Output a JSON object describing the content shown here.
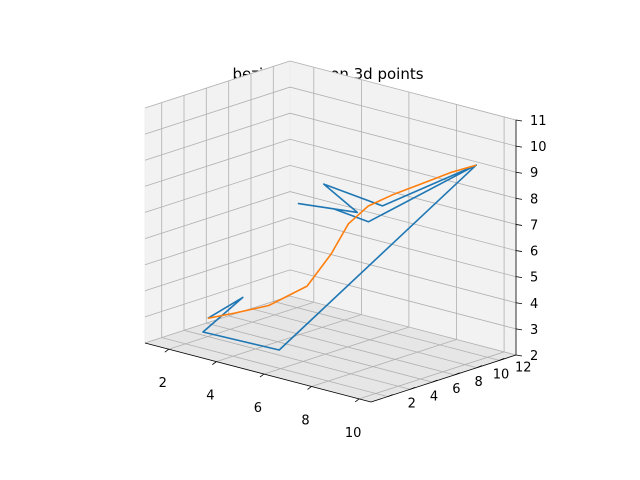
{
  "chart_data": {
    "type": "line",
    "projection": "3d",
    "title": "bezier curve on 3d points",
    "xlabel": "",
    "ylabel": "",
    "zlabel": "",
    "xlim": [
      1,
      10.5
    ],
    "ylim": [
      0.5,
      13.5
    ],
    "zlim": [
      2,
      11
    ],
    "xticks": [
      "2",
      "4",
      "6",
      "8",
      "10"
    ],
    "yticks": [
      "2",
      "4",
      "6",
      "8",
      "10",
      "12"
    ],
    "zticks": [
      "2",
      "3",
      "4",
      "5",
      "6",
      "7",
      "8",
      "9",
      "10",
      "11"
    ],
    "grid": true,
    "series": [
      {
        "color": "#1f77b4",
        "kind": "control-points",
        "points": [
          [
            2,
            4,
            2.7
          ],
          [
            3,
            5,
            3.6
          ],
          [
            2.5,
            2.5,
            2.5
          ],
          [
            5,
            4,
            2.2
          ],
          [
            10,
            11,
            9.5
          ],
          [
            7,
            9,
            7.5
          ],
          [
            5,
            8,
            8
          ],
          [
            5,
            11,
            6.5
          ],
          [
            3,
            10,
            6.5
          ],
          [
            4,
            11,
            6.4
          ],
          [
            5,
            12,
            6.0
          ],
          [
            10,
            11,
            9.5
          ]
        ]
      },
      {
        "color": "#ff7f0e",
        "kind": "bezier-curve",
        "points": [
          [
            2,
            4,
            2.7
          ],
          [
            3,
            4.3,
            3.1
          ],
          [
            4,
            5.2,
            3.5
          ],
          [
            5,
            6.5,
            4.3
          ],
          [
            5.5,
            7.6,
            5.5
          ],
          [
            5.8,
            8.5,
            6.6
          ],
          [
            6.3,
            9.2,
            7.3
          ],
          [
            7,
            9.9,
            7.8
          ],
          [
            8,
            10.4,
            8.4
          ],
          [
            9,
            10.8,
            9.0
          ],
          [
            10,
            11,
            9.5
          ]
        ]
      }
    ]
  }
}
